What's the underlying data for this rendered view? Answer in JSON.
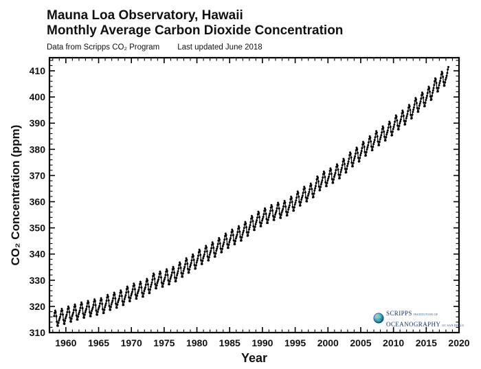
{
  "page": {
    "background": "#ffffff"
  },
  "header": {
    "title_line1": "Mauna Loa Observatory, Hawaii",
    "title_line2": "Monthly Average Carbon Dioxide Concentration",
    "source_note": "Data from Scripps CO₂ Program",
    "updated_note": "Last updated June 2018"
  },
  "chart_data": {
    "type": "line",
    "title": "Mauna Loa Observatory, Hawaii — Monthly Average Carbon Dioxide Concentration",
    "xlabel": "Year",
    "ylabel": "CO₂ Concentration (ppm)",
    "xlim": [
      1957.5,
      2020
    ],
    "ylim": [
      310,
      415
    ],
    "x_major_ticks": [
      1960,
      1965,
      1970,
      1975,
      1980,
      1985,
      1990,
      1995,
      2000,
      2005,
      2010,
      2015,
      2020
    ],
    "x_minor_step": 1,
    "y_major_ticks": [
      310,
      320,
      330,
      340,
      350,
      360,
      370,
      380,
      390,
      400,
      410
    ],
    "y_minor_step": 2,
    "grid": false,
    "legend": "none",
    "series_name": "Monthly average CO₂ concentration",
    "series_color": "#000000",
    "marker": "point",
    "start": {
      "year": 1958,
      "month": 3
    },
    "end": {
      "year": 2018,
      "month": 5
    },
    "construction_note": "monthly value (ppm) = annual mean linearly interpolated at mid-month + seasonal offset for that month",
    "annual_means": {
      "start_year": 1958,
      "values": [
        315.34,
        315.98,
        316.91,
        317.64,
        318.45,
        318.99,
        319.62,
        320.04,
        321.37,
        322.18,
        323.05,
        324.62,
        325.68,
        326.32,
        327.46,
        329.68,
        330.19,
        331.12,
        332.03,
        333.84,
        335.41,
        336.84,
        338.76,
        340.12,
        341.48,
        343.15,
        344.87,
        346.35,
        347.61,
        349.31,
        351.69,
        353.2,
        354.45,
        355.7,
        356.54,
        357.21,
        358.96,
        360.97,
        362.74,
        363.88,
        366.84,
        368.54,
        369.71,
        371.32,
        373.45,
        375.98,
        377.7,
        379.98,
        382.09,
        384.02,
        385.83,
        387.64,
        390.1,
        391.85,
        394.06,
        396.74,
        398.81,
        401.01,
        404.41,
        406.76,
        408.52
      ]
    },
    "seasonal_offsets": [
      -0.35,
      0.25,
      1.15,
      2.35,
      3.15,
      2.45,
      0.85,
      -1.25,
      -2.85,
      -2.95,
      -1.85,
      -0.95
    ]
  },
  "logo": {
    "name_top": "SCRIPPS",
    "institution_of": "Institution of",
    "name_bottom": "OCEANOGRAPHY",
    "campus": "UC San Diego",
    "text_color": "#16335e",
    "globe_color": "#1f7fb0"
  }
}
